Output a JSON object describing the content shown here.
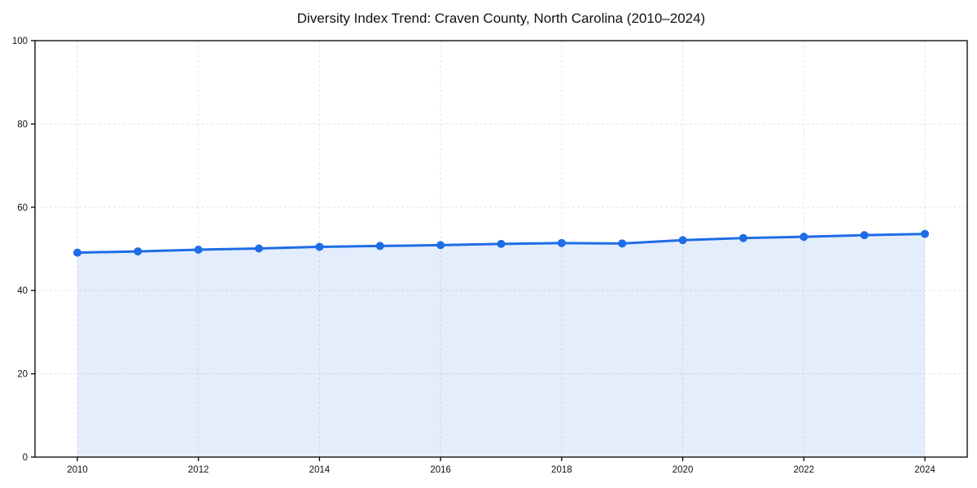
{
  "chart_data": {
    "type": "line",
    "title": "Diversity Index Trend: Craven County, North Carolina (2010–2024)",
    "x": [
      2010,
      2011,
      2012,
      2013,
      2014,
      2015,
      2016,
      2017,
      2018,
      2019,
      2020,
      2021,
      2022,
      2023,
      2024
    ],
    "series": [
      {
        "name": "Diversity Index",
        "values": [
          49.1,
          49.4,
          49.8,
          50.1,
          50.5,
          50.7,
          50.9,
          51.2,
          51.4,
          51.3,
          52.1,
          52.6,
          52.9,
          53.3,
          53.6
        ]
      }
    ],
    "xlabel": "",
    "ylabel": "",
    "xlim": [
      2009.3,
      2024.75
    ],
    "ylim": [
      0,
      100
    ],
    "xticks": [
      2010,
      2012,
      2014,
      2016,
      2018,
      2020,
      2022,
      2024
    ],
    "yticks": [
      0,
      20,
      40,
      60,
      80,
      100
    ],
    "grid": true,
    "grid_style": "dashed",
    "legend": false,
    "area_fill": true,
    "marker": "circle",
    "colors": {
      "line": "#1e6ce6",
      "marker": "#1e6ce6",
      "fill": "rgba(30, 108, 230, 0.12)",
      "grid": "#e3e3e3",
      "axis_border": "#000000",
      "tick_text": "#111111",
      "background": "#ffffff"
    }
  }
}
